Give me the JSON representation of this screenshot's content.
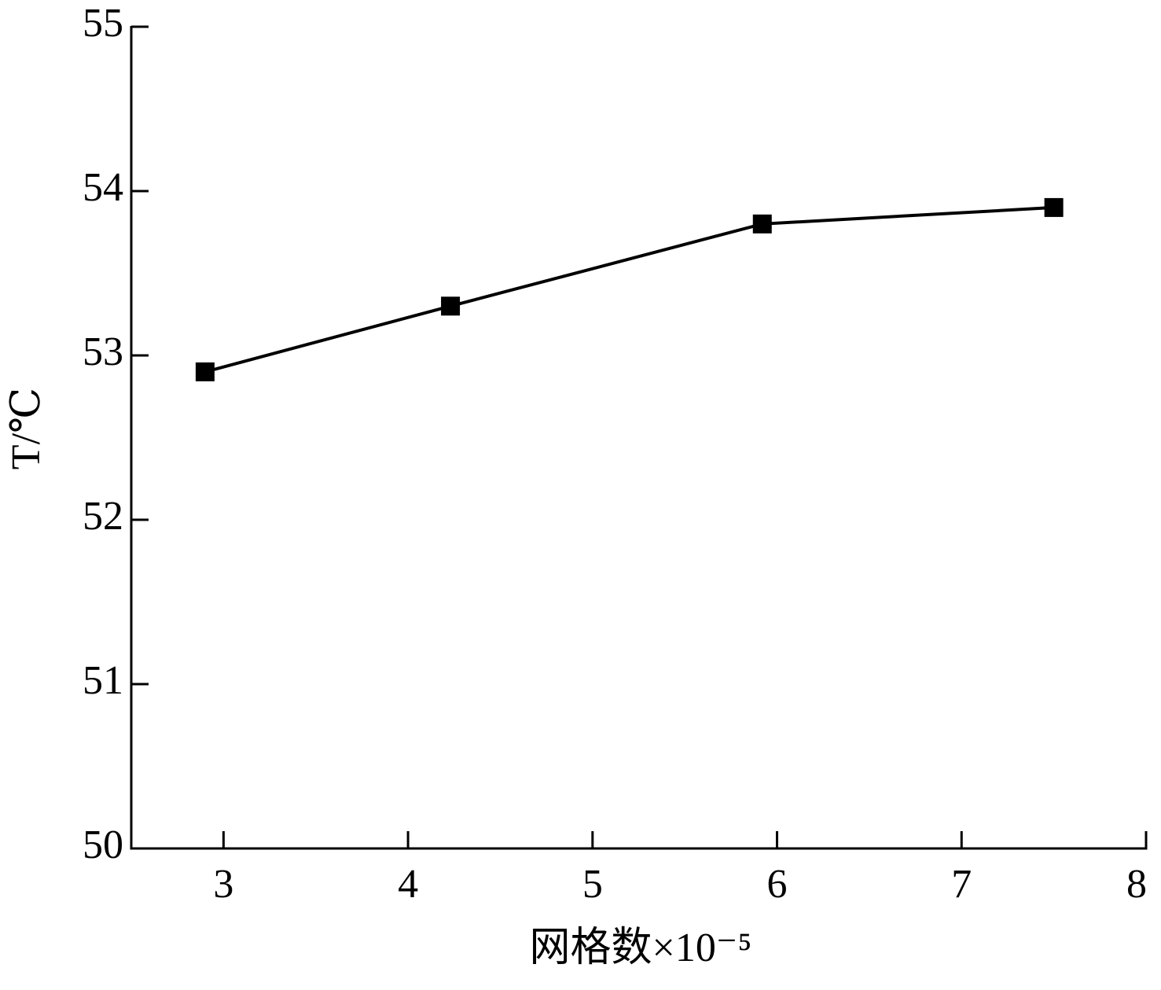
{
  "chart_data": {
    "type": "line",
    "x_label": "网格数×10⁻⁵",
    "y_label": "T/℃",
    "x": [
      2.9,
      4.23,
      5.92,
      7.5
    ],
    "values": [
      52.9,
      53.3,
      53.8,
      53.9
    ],
    "color": "#000000",
    "marker": "square",
    "xlim": [
      2.5,
      8
    ],
    "xticks": [
      3,
      4,
      5,
      6,
      7,
      8
    ],
    "ylim": [
      50,
      55
    ],
    "yticks": [
      50,
      51,
      52,
      53,
      54,
      55
    ],
    "grid": false
  }
}
